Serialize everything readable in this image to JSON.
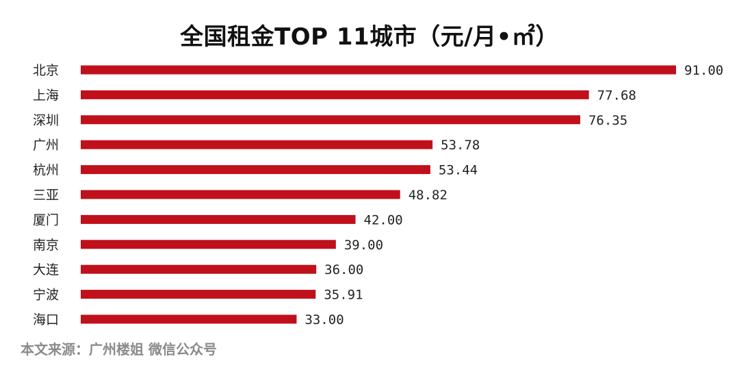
{
  "chart_data": {
    "type": "bar",
    "orientation": "horizontal",
    "title": "全国租金TOP 11城市（元/月•㎡）",
    "categories": [
      "北京",
      "上海",
      "深圳",
      "广州",
      "杭州",
      "三亚",
      "厦门",
      "南京",
      "大连",
      "宁波",
      "海口"
    ],
    "values": [
      91.0,
      77.68,
      76.35,
      53.78,
      53.44,
      48.82,
      42.0,
      39.0,
      36.0,
      35.91,
      33.0
    ],
    "value_labels": [
      "91.00",
      "77.68",
      "76.35",
      "53.78",
      "53.44",
      "48.82",
      "42.00",
      "39.00",
      "36.00",
      "35.91",
      "33.00"
    ],
    "xlim": [
      0,
      91
    ],
    "grid": false,
    "legend": "none",
    "bar_color": "#c0101c"
  },
  "source_note": "本文来源：广州楼姐 微信公众号"
}
